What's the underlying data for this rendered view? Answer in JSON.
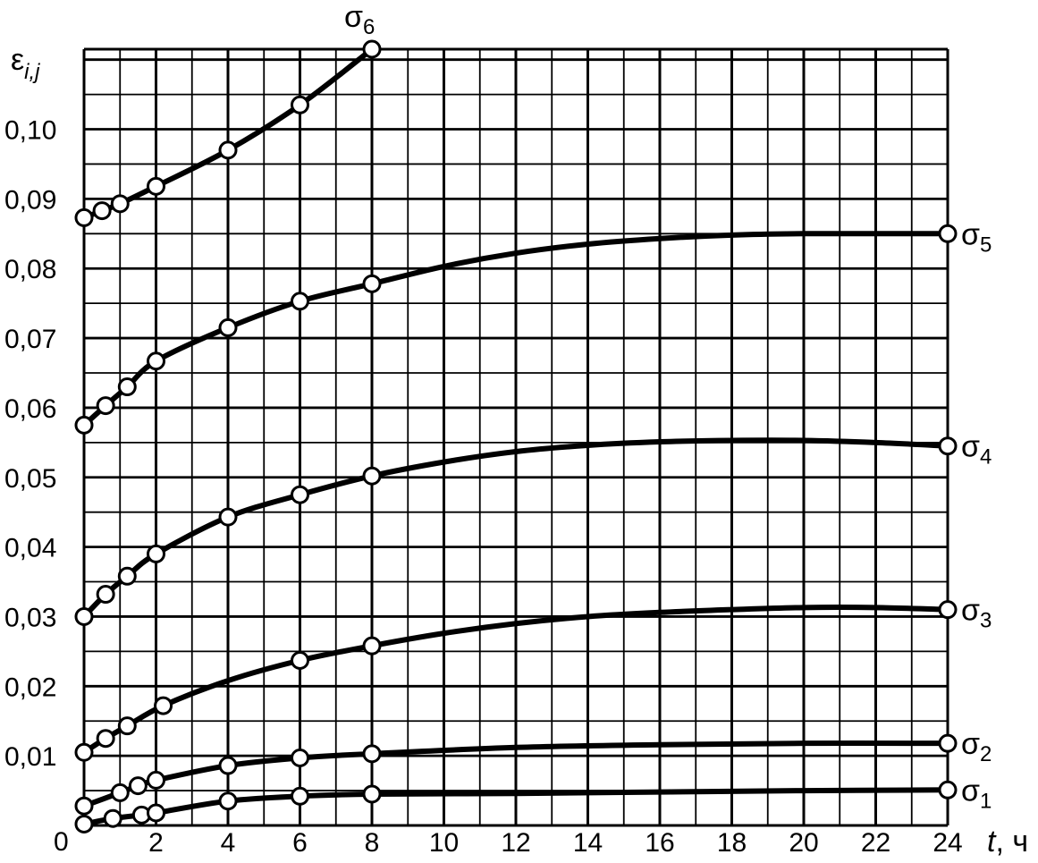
{
  "chart_data": {
    "type": "line",
    "xlabel": "t, ч",
    "xlabel_var": "t",
    "xlabel_unit": ", ч",
    "ylabel": "εi,j",
    "ylabel_base": "ε",
    "ylabel_sub": "i,j",
    "xlim": [
      0,
      24
    ],
    "ylim": [
      0,
      0.11
    ],
    "grid": true,
    "x_ticks": [
      "2",
      "4",
      "6",
      "8",
      "10",
      "12",
      "14",
      "16",
      "18",
      "20",
      "22",
      "24"
    ],
    "y_ticks": [
      "0,01",
      "0,02",
      "0,03",
      "0,04",
      "0,05",
      "0,06",
      "0,07",
      "0,08",
      "0,09",
      "0,10"
    ],
    "origin_label": "0",
    "series": [
      {
        "name": "σ1",
        "name_base": "σ",
        "name_sub": "1",
        "curve_x": [
          0,
          0.8,
          1.6,
          2,
          4,
          6,
          8,
          12,
          16,
          20,
          24
        ],
        "curve_y": [
          0.0002,
          0.001,
          0.0015,
          0.0018,
          0.0035,
          0.0042,
          0.0045,
          0.0046,
          0.0048,
          0.005,
          0.0051
        ],
        "markers_x": [
          0,
          0.8,
          1.6,
          2,
          4,
          6,
          8,
          24
        ],
        "markers_y": [
          0.0002,
          0.001,
          0.0015,
          0.0018,
          0.0035,
          0.0042,
          0.0045,
          0.0051
        ]
      },
      {
        "name": "σ2",
        "name_base": "σ",
        "name_sub": "2",
        "curve_x": [
          0,
          1,
          1.5,
          2,
          4,
          6,
          8,
          12,
          16,
          20,
          24
        ],
        "curve_y": [
          0.0028,
          0.0047,
          0.0057,
          0.0065,
          0.0086,
          0.0097,
          0.0103,
          0.0112,
          0.0116,
          0.0118,
          0.0118
        ],
        "markers_x": [
          0,
          1,
          1.5,
          2,
          4,
          6,
          8,
          24
        ],
        "markers_y": [
          0.0028,
          0.0047,
          0.0057,
          0.0065,
          0.0086,
          0.0097,
          0.0103,
          0.0118
        ]
      },
      {
        "name": "σ3",
        "name_base": "σ",
        "name_sub": "3",
        "curve_x": [
          0,
          0.6,
          1.2,
          2.2,
          4,
          6,
          8,
          10,
          12,
          14,
          16,
          18,
          20,
          22,
          24
        ],
        "curve_y": [
          0.0105,
          0.0125,
          0.0143,
          0.0172,
          0.0208,
          0.0237,
          0.0258,
          0.0276,
          0.029,
          0.03,
          0.0306,
          0.031,
          0.0313,
          0.0313,
          0.031
        ],
        "markers_x": [
          0,
          0.6,
          1.2,
          2.2,
          6,
          8,
          24
        ],
        "markers_y": [
          0.0105,
          0.0125,
          0.0143,
          0.0172,
          0.0237,
          0.0258,
          0.031
        ]
      },
      {
        "name": "σ4",
        "name_base": "σ",
        "name_sub": "4",
        "curve_x": [
          0,
          0.6,
          1.2,
          2,
          4,
          6,
          8,
          10,
          12,
          14,
          16,
          18,
          20,
          22,
          24
        ],
        "curve_y": [
          0.03,
          0.0332,
          0.0358,
          0.039,
          0.0443,
          0.0475,
          0.0502,
          0.0522,
          0.0537,
          0.0546,
          0.0551,
          0.0553,
          0.0553,
          0.055,
          0.0545
        ],
        "markers_x": [
          0,
          0.6,
          1.2,
          2,
          4,
          6,
          8,
          24
        ],
        "markers_y": [
          0.03,
          0.0332,
          0.0358,
          0.039,
          0.0443,
          0.0475,
          0.0502,
          0.0545
        ]
      },
      {
        "name": "σ5",
        "name_base": "σ",
        "name_sub": "5",
        "curve_x": [
          0,
          0.6,
          1.2,
          2,
          4,
          6,
          8,
          10,
          12,
          14,
          16,
          18,
          20,
          22,
          24
        ],
        "curve_y": [
          0.0575,
          0.0603,
          0.063,
          0.0667,
          0.0715,
          0.0753,
          0.0778,
          0.0803,
          0.0822,
          0.0835,
          0.0843,
          0.0848,
          0.085,
          0.085,
          0.085
        ],
        "markers_x": [
          0,
          0.6,
          1.2,
          2,
          4,
          6,
          8,
          24
        ],
        "markers_y": [
          0.0575,
          0.0603,
          0.063,
          0.0667,
          0.0715,
          0.0753,
          0.0778,
          0.085
        ]
      },
      {
        "name": "σ6",
        "name_base": "σ",
        "name_sub": "6",
        "curve_x": [
          0,
          0.5,
          1,
          2,
          4,
          6,
          8
        ],
        "curve_y": [
          0.0873,
          0.0883,
          0.0893,
          0.0918,
          0.097,
          0.1035,
          0.1115
        ],
        "markers_x": [
          0,
          0.5,
          1,
          2,
          4,
          6,
          8
        ],
        "markers_y": [
          0.0873,
          0.0883,
          0.0893,
          0.0918,
          0.097,
          0.1035,
          0.1115
        ]
      }
    ]
  }
}
